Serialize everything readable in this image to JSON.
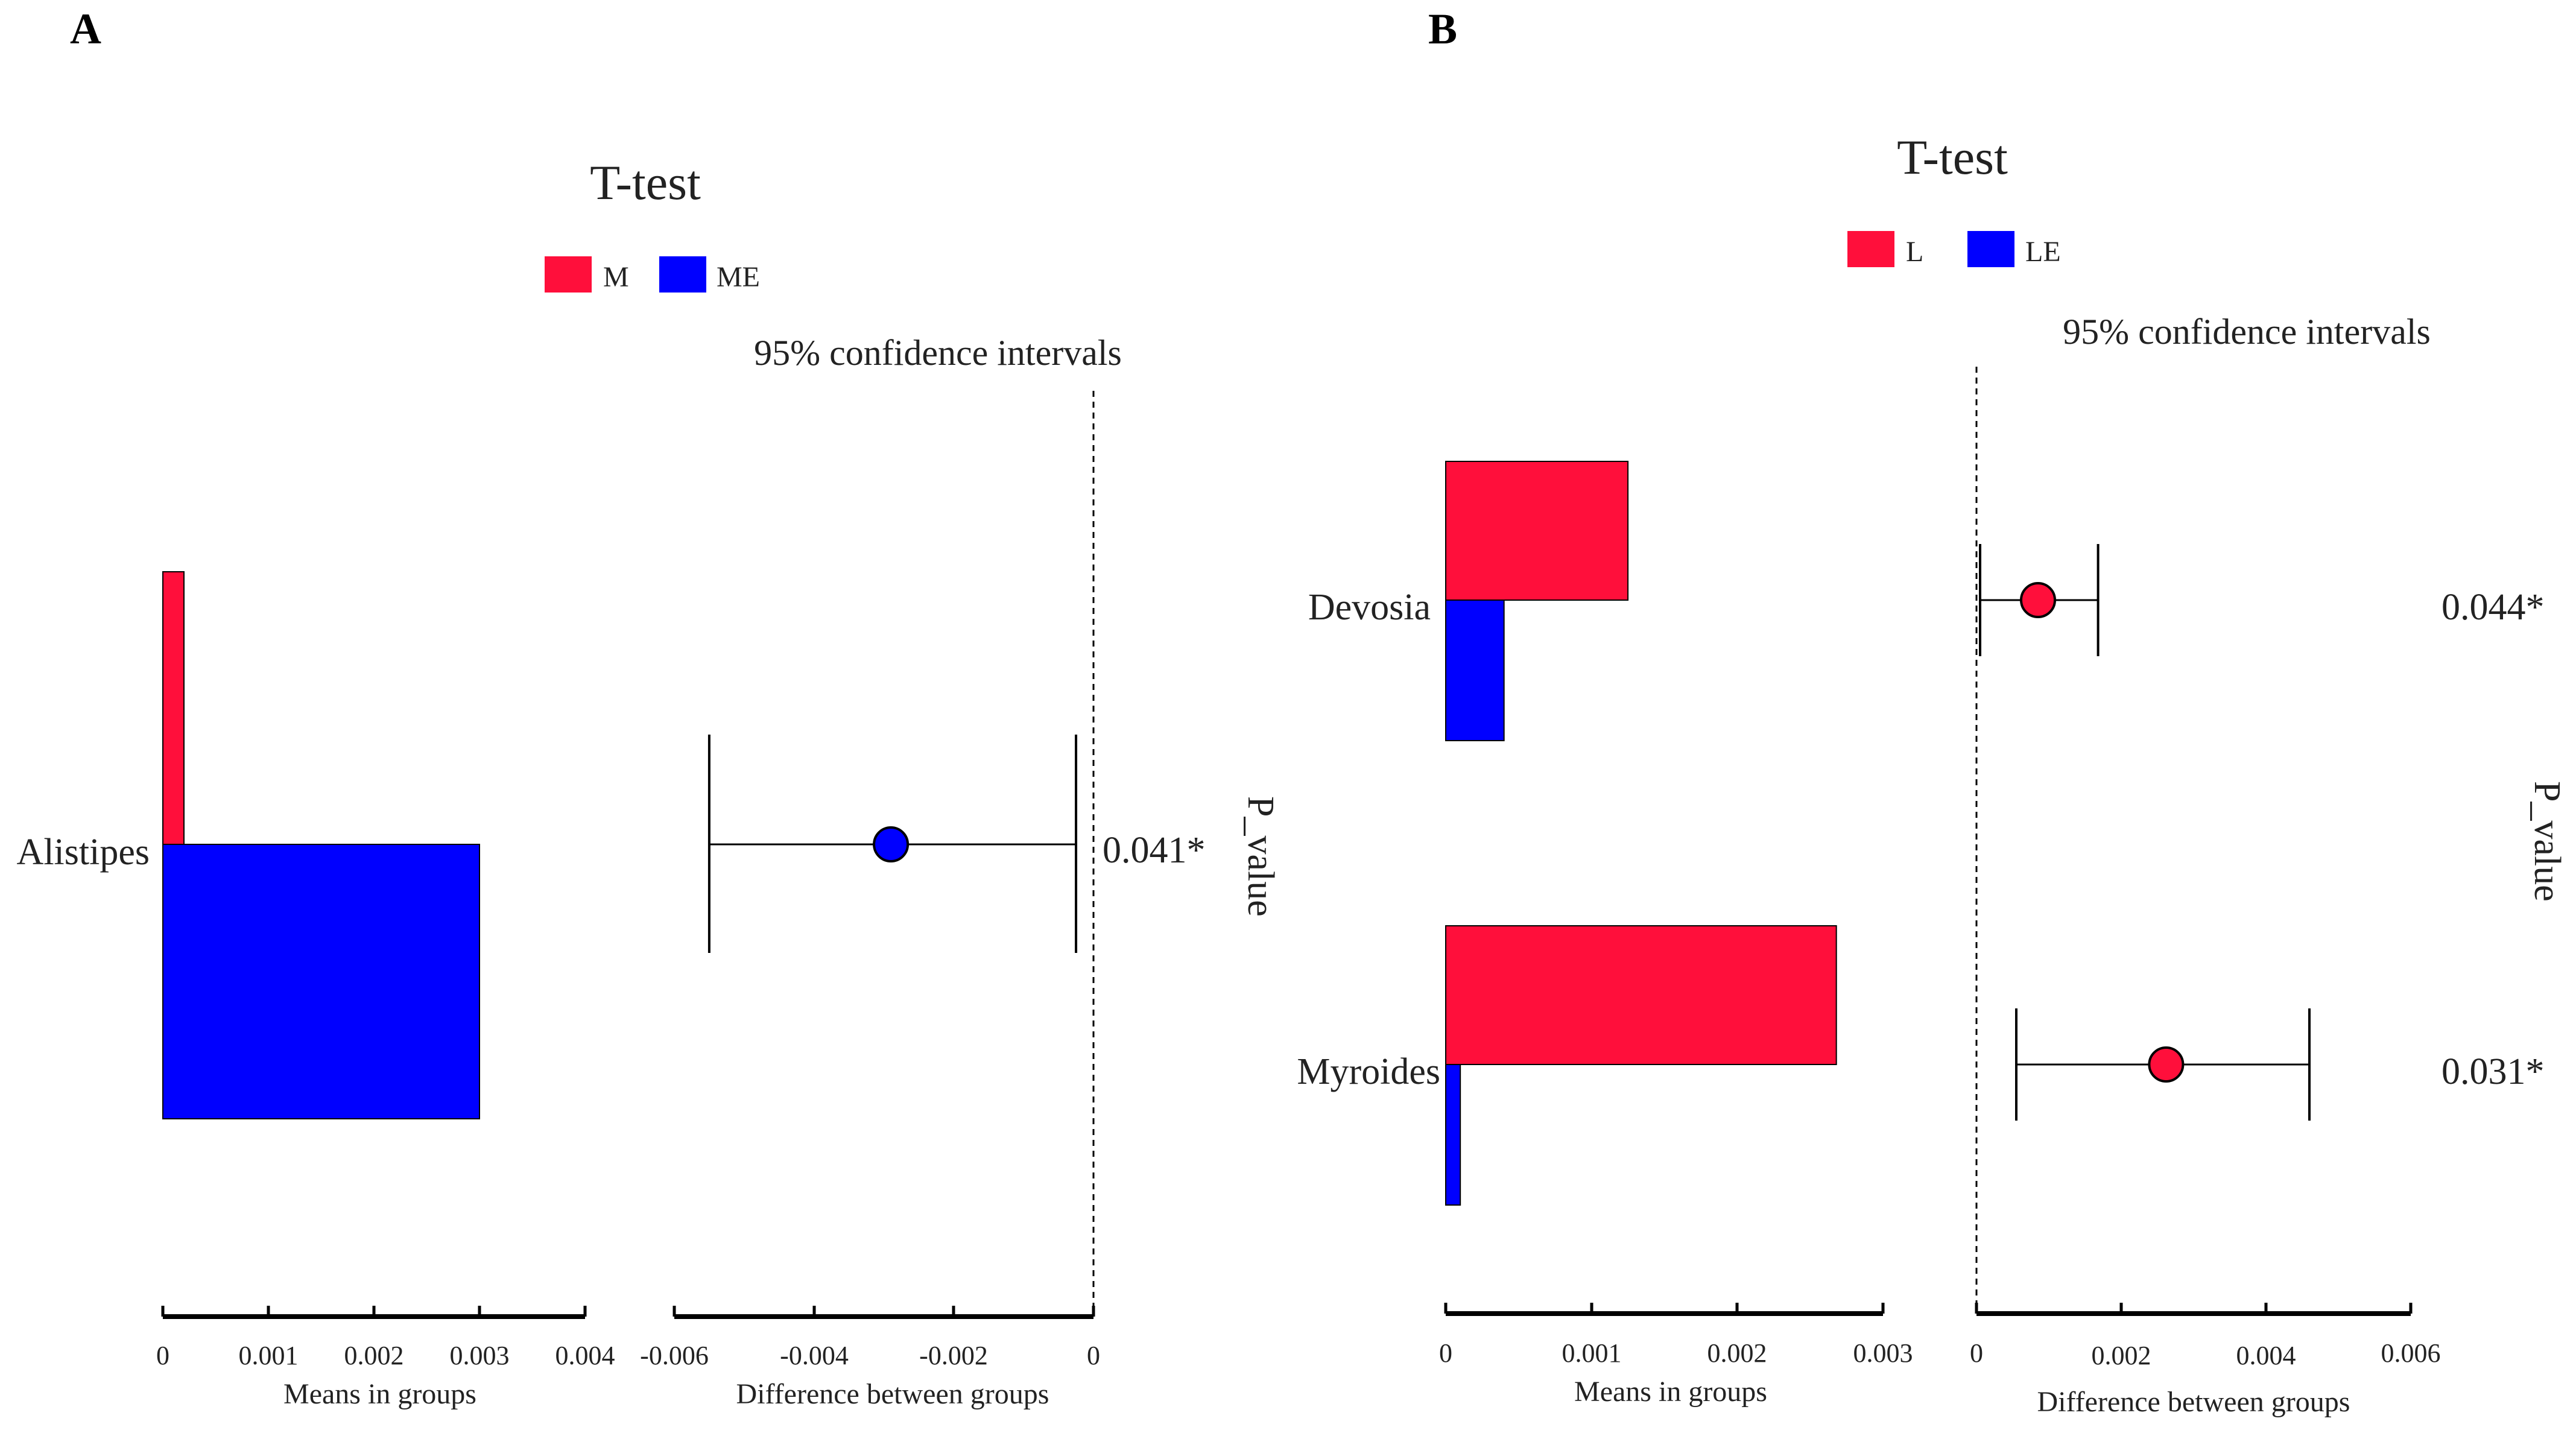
{
  "colors": {
    "group1": "#FF0F3B",
    "group2": "#0000FF",
    "axis": "#000000"
  },
  "chart_data": [
    {
      "panel": "A",
      "title": "T-test",
      "type": "bar",
      "legend": {
        "placement": "top-center",
        "entries": [
          "M",
          "ME"
        ]
      },
      "ci_label": "95% confidence intervals",
      "categories": [
        "Alistipes"
      ],
      "series": [
        {
          "name": "M",
          "values": [
            0.0002
          ]
        },
        {
          "name": "ME",
          "values": [
            0.003
          ]
        }
      ],
      "means_axis": {
        "label": "Means in groups",
        "range": [
          0,
          0.004
        ],
        "ticks": [
          0,
          0.001,
          0.002,
          0.003,
          0.004
        ],
        "tick_labels": [
          "0",
          "0.001",
          "0.002",
          "0.003",
          "0.004"
        ]
      },
      "difference": [
        {
          "category": "Alistipes",
          "estimate": -0.0029,
          "ci_low": -0.0055,
          "ci_high": -0.00025,
          "marker_color": "#0000FF"
        }
      ],
      "diff_axis": {
        "label": "Difference between groups",
        "range": [
          -0.006,
          0
        ],
        "ticks": [
          -0.006,
          -0.004,
          -0.002,
          0
        ],
        "tick_labels": [
          "-0.006",
          "-0.004",
          "-0.002",
          "0"
        ]
      },
      "p_value_label": "P_value",
      "p_values": [
        "0.041*"
      ]
    },
    {
      "panel": "B",
      "title": "T-test",
      "type": "bar",
      "legend": {
        "placement": "top-center",
        "entries": [
          "L",
          "LE"
        ]
      },
      "ci_label": "95% confidence intervals",
      "categories": [
        "Devosia",
        "Myroides"
      ],
      "series": [
        {
          "name": "L",
          "values": [
            0.00125,
            0.00268
          ]
        },
        {
          "name": "LE",
          "values": [
            0.0004,
            0.0001
          ]
        }
      ],
      "means_axis": {
        "label": "Means in groups",
        "range": [
          0,
          0.003
        ],
        "ticks": [
          0,
          0.001,
          0.002,
          0.003
        ],
        "tick_labels": [
          "0",
          "0.001",
          "0.002",
          "0.003"
        ]
      },
      "difference": [
        {
          "category": "Devosia",
          "estimate": 0.00085,
          "ci_low": 5e-05,
          "ci_high": 0.00168,
          "marker_color": "#FF0F3B"
        },
        {
          "category": "Myroides",
          "estimate": 0.00262,
          "ci_low": 0.00055,
          "ci_high": 0.0046,
          "marker_color": "#FF0F3B"
        }
      ],
      "diff_axis": {
        "label": "Difference between groups",
        "range": [
          0,
          0.006
        ],
        "ticks": [
          0,
          0.002,
          0.004,
          0.006
        ],
        "tick_labels": [
          "0",
          "0.002",
          "0.004",
          "0.006"
        ]
      },
      "p_value_label": "P_value",
      "p_values": [
        "0.044*",
        "0.031*"
      ]
    }
  ]
}
